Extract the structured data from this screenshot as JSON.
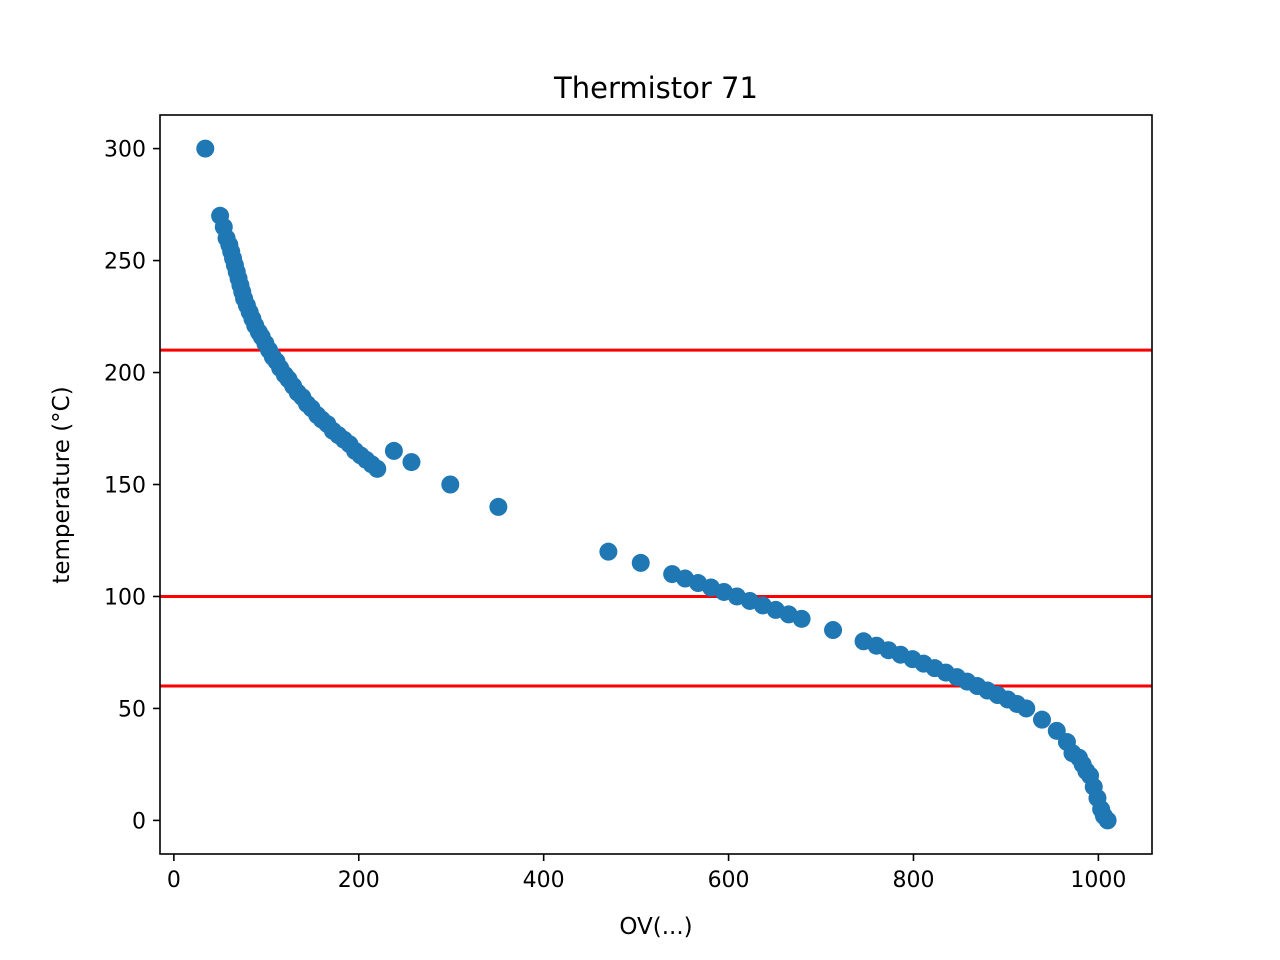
{
  "chart_data": {
    "type": "scatter",
    "title": "Thermistor 71",
    "xlabel": "OV(...)",
    "ylabel": "temperature (°C)",
    "xlim": [
      -15,
      1058
    ],
    "ylim": [
      -15,
      315
    ],
    "xticks": [
      0,
      200,
      400,
      600,
      800,
      1000
    ],
    "yticks": [
      0,
      50,
      100,
      150,
      200,
      250,
      300
    ],
    "grid": false,
    "colors": {
      "points": "#1f77b4",
      "lines": "#ff0000"
    },
    "horizontal_lines": [
      210,
      100,
      60
    ],
    "series": [
      {
        "points": [
          [
            34,
            300
          ],
          [
            50,
            270
          ],
          [
            54,
            265
          ],
          [
            57,
            260
          ],
          [
            60,
            257
          ],
          [
            62,
            254
          ],
          [
            64,
            251
          ],
          [
            66,
            248
          ],
          [
            68,
            245
          ],
          [
            70,
            242
          ],
          [
            72,
            239
          ],
          [
            74,
            236
          ],
          [
            76,
            233
          ],
          [
            79,
            230
          ],
          [
            82,
            227
          ],
          [
            85,
            224
          ],
          [
            88,
            221
          ],
          [
            92,
            218
          ],
          [
            95,
            216
          ],
          [
            99,
            213
          ],
          [
            103,
            210
          ],
          [
            107,
            207
          ],
          [
            111,
            205
          ],
          [
            115,
            202
          ],
          [
            120,
            199
          ],
          [
            124,
            197
          ],
          [
            129,
            194
          ],
          [
            134,
            191
          ],
          [
            139,
            189
          ],
          [
            144,
            186
          ],
          [
            149,
            184
          ],
          [
            155,
            181
          ],
          [
            160,
            179
          ],
          [
            166,
            177
          ],
          [
            172,
            174
          ],
          [
            178,
            172
          ],
          [
            184,
            170
          ],
          [
            190,
            168
          ],
          [
            196,
            165
          ],
          [
            202,
            163
          ],
          [
            208,
            161
          ],
          [
            214,
            159
          ],
          [
            220,
            157
          ],
          [
            238,
            165
          ],
          [
            257,
            160
          ],
          [
            299,
            150
          ],
          [
            351,
            140
          ],
          [
            470,
            120
          ],
          [
            505,
            115
          ],
          [
            539,
            110
          ],
          [
            553,
            108
          ],
          [
            567,
            106
          ],
          [
            581,
            104
          ],
          [
            595,
            102
          ],
          [
            609,
            100
          ],
          [
            623,
            98
          ],
          [
            637,
            96
          ],
          [
            651,
            94
          ],
          [
            665,
            92
          ],
          [
            679,
            90
          ],
          [
            713,
            85
          ],
          [
            746,
            80
          ],
          [
            760,
            78
          ],
          [
            773,
            76
          ],
          [
            786,
            74
          ],
          [
            799,
            72
          ],
          [
            811,
            70
          ],
          [
            823,
            68
          ],
          [
            835,
            66
          ],
          [
            847,
            64
          ],
          [
            858,
            62
          ],
          [
            869,
            60
          ],
          [
            880,
            58
          ],
          [
            891,
            56
          ],
          [
            902,
            54
          ],
          [
            912,
            52
          ],
          [
            922,
            50
          ],
          [
            939,
            45
          ],
          [
            955,
            40
          ],
          [
            966,
            35
          ],
          [
            972,
            30
          ],
          [
            979,
            28
          ],
          [
            983,
            25
          ],
          [
            987,
            22
          ],
          [
            991,
            20
          ],
          [
            995,
            15
          ],
          [
            999,
            10
          ],
          [
            1003,
            5
          ],
          [
            1006,
            2
          ],
          [
            1010,
            0
          ]
        ]
      }
    ]
  }
}
